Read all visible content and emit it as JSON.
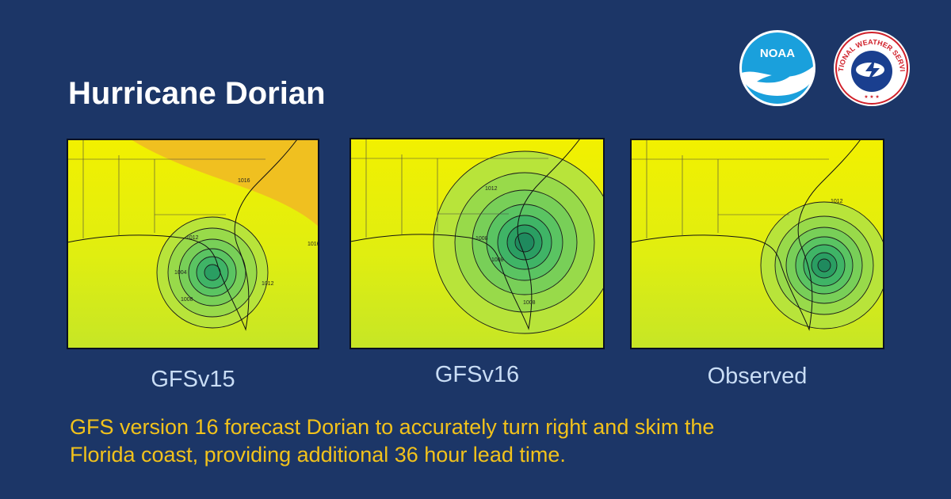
{
  "title": "Hurricane Dorian",
  "logos": {
    "noaa": "NOAA",
    "nws": "NATIONAL WEATHER SERVICE"
  },
  "panels": [
    {
      "label": "GFSv15",
      "contours": [
        "1016",
        "1012",
        "1004",
        "1008",
        "1012",
        "1016"
      ]
    },
    {
      "label": "GFSv16",
      "contours": [
        "1012",
        "1008",
        "1008",
        "1008"
      ]
    },
    {
      "label": "Observed",
      "contours": [
        "1012"
      ]
    }
  ],
  "caption": [
    "GFS version 16 forecast Dorian to accurately turn right and skim the",
    "Florida coast, providing additional 36 hour lead time."
  ]
}
